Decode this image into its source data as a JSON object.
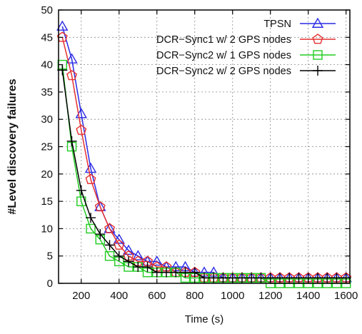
{
  "chart_data": {
    "type": "line",
    "xlabel": "Time (s)",
    "ylabel": "#Level discovery failures",
    "xlim": [
      80,
      1620
    ],
    "ylim": [
      0,
      50
    ],
    "xticks": [
      200,
      400,
      600,
      800,
      1000,
      1200,
      1400,
      1600
    ],
    "yticks": [
      0,
      5,
      10,
      15,
      20,
      25,
      30,
      35,
      40,
      45,
      50
    ],
    "grid": true,
    "legend_position": "top-right",
    "x": [
      100,
      150,
      200,
      250,
      300,
      350,
      400,
      450,
      500,
      550,
      600,
      650,
      700,
      750,
      800,
      850,
      900,
      950,
      1000,
      1050,
      1100,
      1150,
      1200,
      1250,
      1300,
      1350,
      1400,
      1450,
      1500,
      1550,
      1600
    ],
    "series": [
      {
        "name": "TPSN",
        "color": "#2a2ae6",
        "marker": "triangle",
        "values": [
          47,
          41,
          31,
          21,
          14,
          10,
          8,
          6,
          5,
          4,
          4,
          3,
          3,
          3,
          2,
          2,
          2,
          1,
          1,
          1,
          1,
          1,
          1,
          1,
          1,
          1,
          1,
          1,
          1,
          1,
          1
        ]
      },
      {
        "name": "DCR−Sync1 w/ 2 GPS nodes",
        "color": "#e63030",
        "marker": "pentagon",
        "values": [
          45,
          38,
          28,
          19,
          14,
          10,
          7,
          5,
          4,
          4,
          3,
          3,
          2,
          2,
          2,
          1,
          1,
          1,
          1,
          1,
          1,
          1,
          1,
          1,
          1,
          1,
          1,
          1,
          1,
          1,
          1
        ]
      },
      {
        "name": "DCR−Sync2 w/ 1 GPS nodes",
        "color": "#22cc22",
        "marker": "square",
        "values": [
          40,
          25,
          15,
          10,
          8,
          5,
          4,
          3,
          3,
          2,
          2,
          2,
          2,
          1,
          1,
          1,
          1,
          1,
          1,
          1,
          1,
          1,
          0,
          0,
          0,
          0,
          0,
          0,
          0,
          0,
          0
        ]
      },
      {
        "name": "DCR−Sync2 w/ 2 GPS nodes",
        "color": "#000000",
        "marker": "plus",
        "values": [
          39,
          26,
          17,
          12,
          9,
          7,
          5,
          4,
          3,
          3,
          2,
          2,
          2,
          2,
          2,
          1,
          1,
          1,
          1,
          1,
          1,
          1,
          1,
          1,
          1,
          1,
          1,
          1,
          1,
          1,
          1
        ]
      }
    ]
  }
}
